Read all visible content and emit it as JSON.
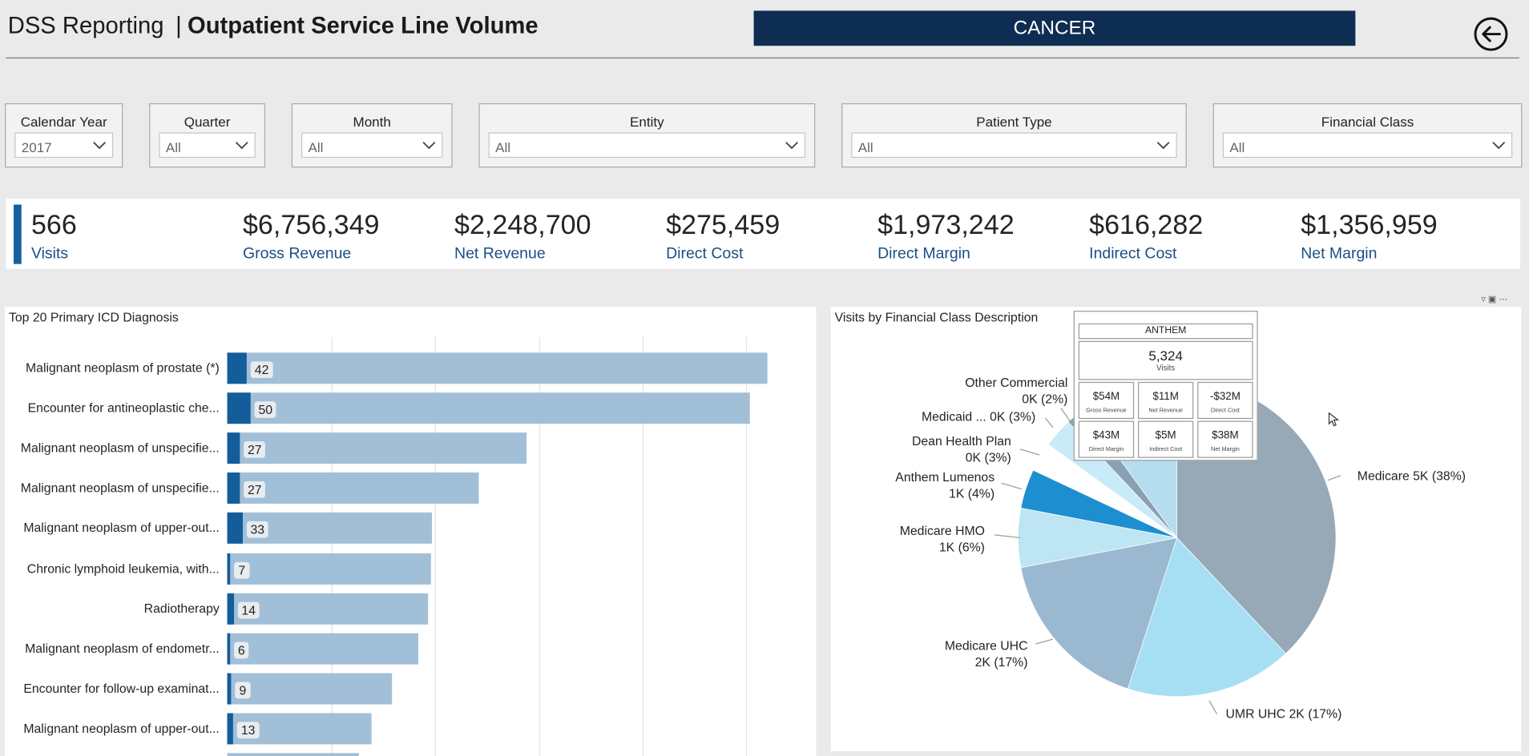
{
  "header": {
    "app_title": "DSS Reporting",
    "separator": "|",
    "page_title": "Outpatient Service Line Volume",
    "service_line": "CANCER"
  },
  "filters": [
    {
      "label": "Calendar Year",
      "value": "2017"
    },
    {
      "label": "Quarter",
      "value": "All"
    },
    {
      "label": "Month",
      "value": "All"
    },
    {
      "label": "Entity",
      "value": "All"
    },
    {
      "label": "Patient Type",
      "value": "All"
    },
    {
      "label": "Financial Class",
      "value": "All"
    }
  ],
  "kpis": [
    {
      "value": "566",
      "label": "Visits"
    },
    {
      "value": "$6,756,349",
      "label": "Gross Revenue"
    },
    {
      "value": "$2,248,700",
      "label": "Net Revenue"
    },
    {
      "value": "$275,459",
      "label": "Direct Cost"
    },
    {
      "value": "$1,973,242",
      "label": "Direct Margin"
    },
    {
      "value": "$616,282",
      "label": "Indirect Cost"
    },
    {
      "value": "$1,356,959",
      "label": "Net Margin"
    }
  ],
  "colors": {
    "banner": "#0e2d52",
    "kpi_label": "#1a4f86",
    "bar_background": "#a2bfd8",
    "bar_foreground": "#135d9b"
  },
  "icons": [
    "back-arrow-icon",
    "chevron-down-icon",
    "filter-icon",
    "focus-mode-icon",
    "more-options-icon"
  ],
  "chart_data": [
    {
      "type": "bar",
      "title": "Top 20 Primary ICD Diagnosis",
      "orientation": "horizontal",
      "categories": [
        "Malignant neoplasm of prostate (*)",
        "Encounter for antineoplastic che...",
        "Malignant neoplasm of unspecifie...",
        "Malignant neoplasm of unspecifie...",
        "Malignant neoplasm of upper-out...",
        "Chronic lymphoid leukemia, with...",
        "Radiotherapy",
        "Malignant neoplasm of endometr...",
        "Encounter for follow-up examinat...",
        "Malignant neoplasm of upper-out..."
      ],
      "series": [
        {
          "values": [
            42,
            50,
            27,
            27,
            33,
            7,
            14,
            6,
            9,
            13
          ]
        },
        {
          "values": [
            519,
            502,
            288,
            242,
            197,
            196,
            193,
            184,
            158,
            139
          ]
        }
      ]
    },
    {
      "type": "pie",
      "title": "Visits by Financial Class Description",
      "slices": [
        {
          "name": "Medicare",
          "value": 38,
          "label": "Medicare 5K (38%)",
          "color": "#97a8b7"
        },
        {
          "name": "UMR UHC",
          "value": 17,
          "label": "UMR UHC 2K (17%)",
          "color": "#a6dff3"
        },
        {
          "name": "Medicare UHC",
          "value": 17,
          "label": "Medicare UHC\n2K (17%)",
          "color": "#9bb8d1"
        },
        {
          "name": "Medicare HMO",
          "value": 6,
          "label": "Medicare HMO\n1K (6%)",
          "color": "#bde5f3"
        },
        {
          "name": "Anthem Lumenos",
          "value": 4,
          "label": "Anthem Lumenos\n1K (4%)",
          "color": "#1d8fd0"
        },
        {
          "name": "Dean Health Plan",
          "value": 3,
          "label": "Dean Health Plan\n0K (3%)",
          "color": "#ffffff"
        },
        {
          "name": "Medicaid ...",
          "value": 3,
          "label": "Medicaid ... 0K (3%)",
          "color": "#c9eaf8"
        },
        {
          "name": "Other Commercial",
          "value": 2,
          "label": "Other Commercial\n0K (2%)",
          "color": "#8aa0b4"
        },
        {
          "name": "Other",
          "value": 10,
          "label": "",
          "color": "#b5dcef"
        }
      ],
      "tooltip": {
        "header": "ANTHEM",
        "value": "5,324",
        "value_label": "Visits",
        "cells": [
          {
            "value": "$54M",
            "label": "Gross Revenue"
          },
          {
            "value": "$11M",
            "label": "Net Revenue"
          },
          {
            "value": "-$32M",
            "label": "Direct Cost"
          },
          {
            "value": "$43M",
            "label": "Direct Margin"
          },
          {
            "value": "$5M",
            "label": "Indirect Cost"
          },
          {
            "value": "$38M",
            "label": "Net Margin"
          }
        ]
      }
    }
  ]
}
